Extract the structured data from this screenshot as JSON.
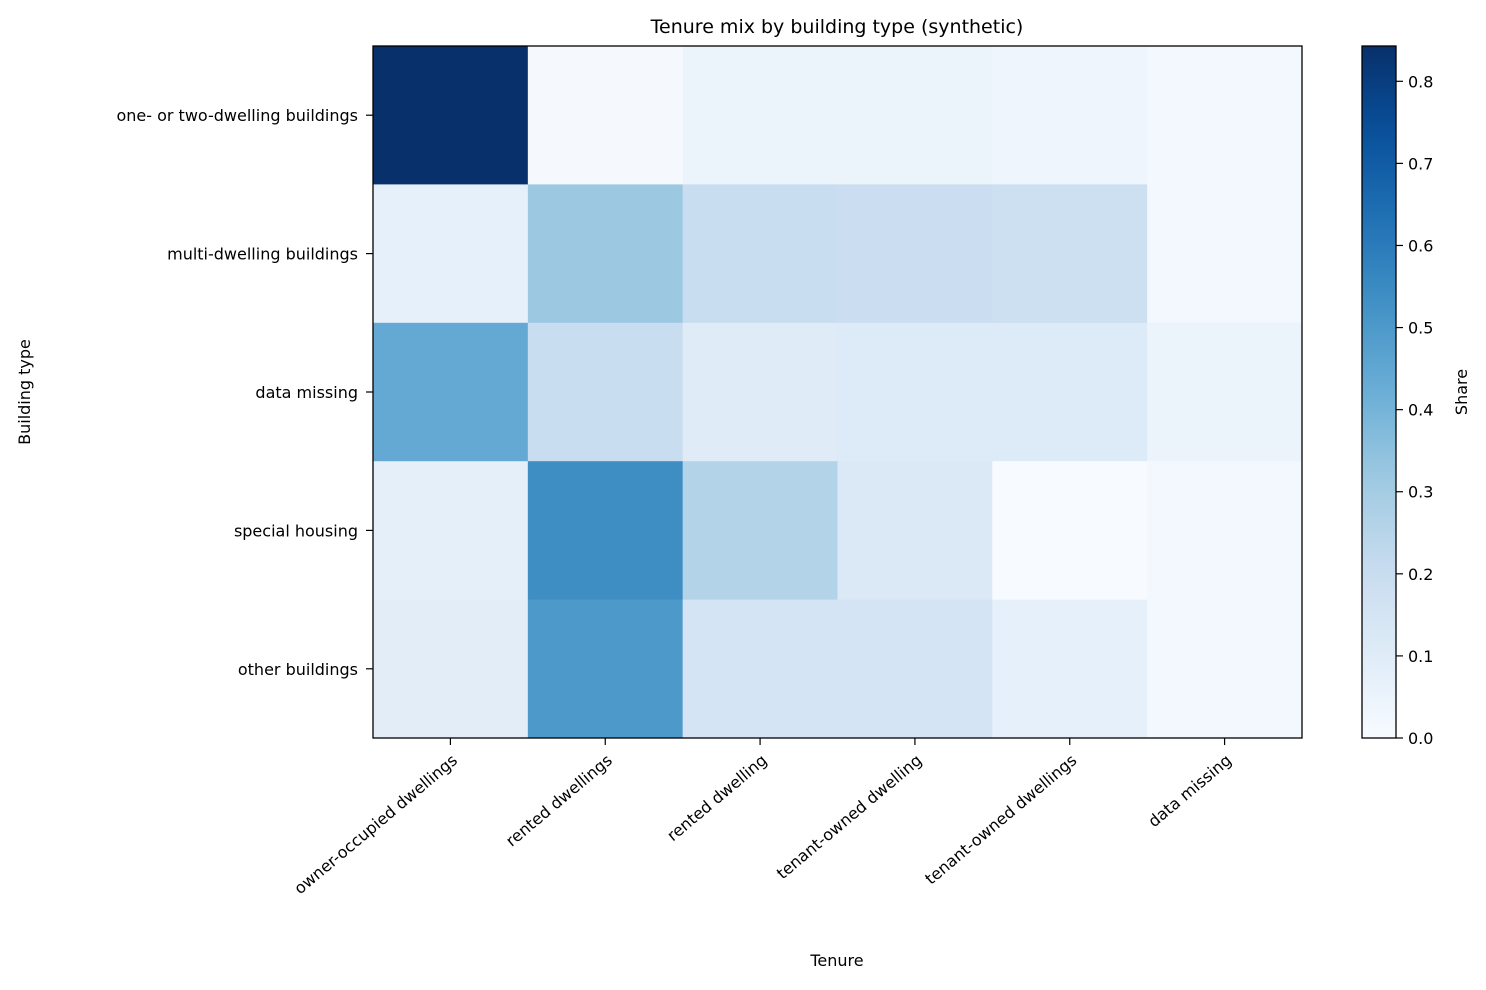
{
  "chart_data": {
    "type": "heatmap",
    "title": "Tenure mix by building type (synthetic)",
    "xlabel": "Tenure",
    "ylabel": "Building type",
    "x_categories": [
      "owner-occupied dwellings",
      "rented dwellings",
      "rented dwelling",
      "tenant-owned dwelling",
      "tenant-owned dwellings",
      "data missing"
    ],
    "y_categories": [
      "one- or two-dwelling buildings",
      "multi-dwelling buildings",
      "data missing",
      "special housing",
      "other buildings"
    ],
    "values": [
      [
        0.843,
        0.01,
        0.05,
        0.05,
        0.04,
        0.02
      ],
      [
        0.07,
        0.32,
        0.2,
        0.19,
        0.18,
        0.02
      ],
      [
        0.44,
        0.2,
        0.1,
        0.11,
        0.11,
        0.05
      ],
      [
        0.08,
        0.54,
        0.26,
        0.12,
        0.0,
        0.02
      ],
      [
        0.09,
        0.5,
        0.15,
        0.15,
        0.07,
        0.02
      ]
    ],
    "colormap": "Blues",
    "colorbar": {
      "label": "Share",
      "range": [
        0.0,
        0.843
      ],
      "ticks": [
        0.0,
        0.1,
        0.2,
        0.3,
        0.4,
        0.5,
        0.6,
        0.7,
        0.8
      ],
      "tick_labels": [
        "0.0",
        "0.1",
        "0.2",
        "0.3",
        "0.4",
        "0.5",
        "0.6",
        "0.7",
        "0.8"
      ]
    },
    "grid": false
  }
}
